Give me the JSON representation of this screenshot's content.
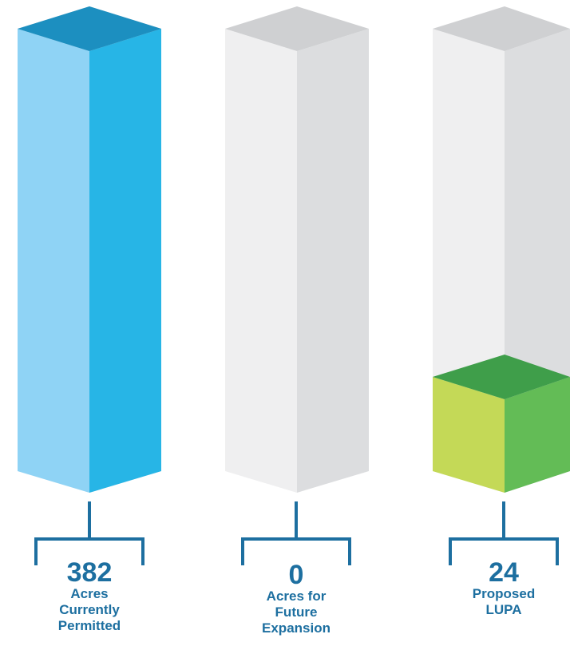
{
  "chart_data": {
    "type": "bar",
    "style": "3d-columns",
    "categories": [
      "Acres Currently Permitted",
      "Acres for Future Expansion",
      "Proposed LUPA"
    ],
    "values": [
      382,
      0,
      24
    ],
    "value_labels": [
      "382",
      "0",
      "24"
    ],
    "caption_lines": [
      [
        "Acres",
        "Currently",
        "Permitted"
      ],
      [
        "Acres for",
        "Future",
        "Expansion"
      ],
      [
        "Proposed",
        "LUPA"
      ]
    ],
    "ylim": [
      0,
      382
    ],
    "grid": false,
    "legend": "none"
  },
  "colors": {
    "label_text": "#1d6fa0",
    "bracket": "#1d6fa0",
    "bar1_left": "#8fd3f5",
    "bar1_right": "#27b5e6",
    "bar1_top": "#1c8fc0",
    "bar3_left": "#c4d957",
    "bar3_right": "#63bc56",
    "bar3_top": "#3f9e4a",
    "empty_left": "#efeff0",
    "empty_right": "#dcdddf",
    "empty_top": "#cfd0d2"
  }
}
